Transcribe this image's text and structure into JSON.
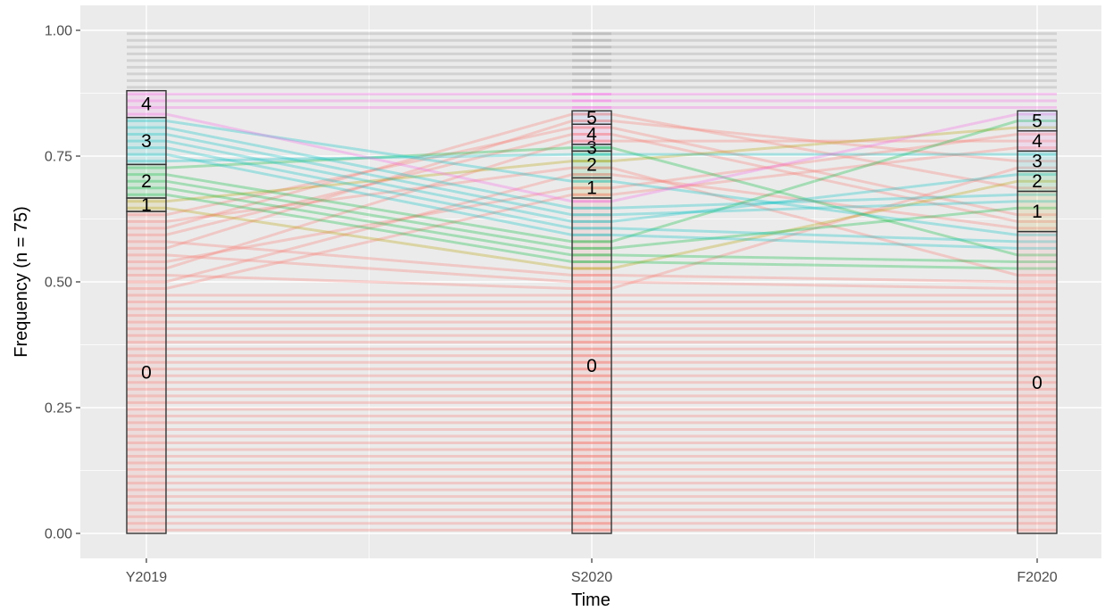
{
  "chart_data": {
    "type": "alluvial",
    "title": "",
    "xlabel": "Time",
    "ylabel": "Frequency (n = 75)",
    "n": 75,
    "ylim": [
      0,
      1.05
    ],
    "y_ticks": [
      0,
      0.25,
      0.5,
      0.75,
      1
    ],
    "y_tick_labels": [
      "0.00",
      "0.25",
      "0.50",
      "0.75",
      "1.00"
    ],
    "categories": [
      "Y2019",
      "S2020",
      "F2020"
    ],
    "grid": true,
    "legend": "none",
    "stratum_colors": {
      "0": "#F8766D",
      "1": "#B79F00",
      "2": "#00BA38",
      "3": "#00BFC4",
      "4": "#F564E3",
      "5": "#619CFF"
    },
    "strata": [
      {
        "time": "Y2019",
        "items": [
          {
            "label": "0",
            "count": 48
          },
          {
            "label": "1",
            "count": 2
          },
          {
            "label": "2",
            "count": 5
          },
          {
            "label": "3",
            "count": 7
          },
          {
            "label": "4",
            "count": 4
          }
        ]
      },
      {
        "time": "S2020",
        "items": [
          {
            "label": "0",
            "count": 50
          },
          {
            "label": "1",
            "count": 3
          },
          {
            "label": "2",
            "count": 4
          },
          {
            "label": "3",
            "count": 1
          },
          {
            "label": "4",
            "count": 3
          },
          {
            "label": "5",
            "count": 2
          }
        ]
      },
      {
        "time": "F2020",
        "items": [
          {
            "label": "0",
            "count": 45
          },
          {
            "label": "1",
            "count": 6
          },
          {
            "label": "2",
            "count": 3
          },
          {
            "label": "3",
            "count": 3
          },
          {
            "label": "4",
            "count": 3
          },
          {
            "label": "5",
            "count": 3
          }
        ]
      }
    ]
  }
}
